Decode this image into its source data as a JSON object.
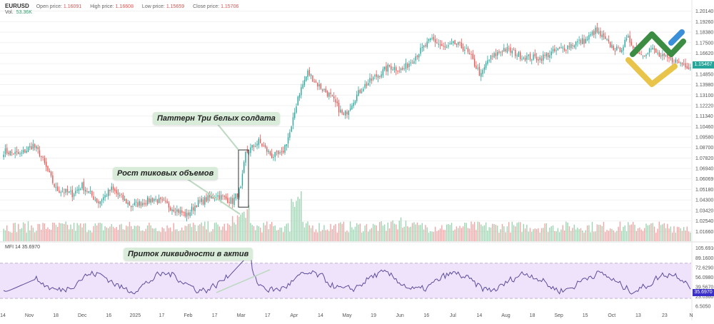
{
  "header": {
    "symbol": "EURUSD",
    "open_label": "Open price:",
    "open_value": "1.16091",
    "high_label": "High price:",
    "high_value": "1.16608",
    "low_label": "Low price:",
    "low_value": "1.15659",
    "close_label": "Close price:",
    "close_value": "1.15706",
    "vol_label": "Vol.",
    "vol_value": "53.36K"
  },
  "mfi": {
    "label": "MFI 14",
    "value": "35.6970"
  },
  "callouts": {
    "three_soldiers": "Паттерн Три белых солдата",
    "tick_volume": "Рост тиковых объемов",
    "liquidity": "Приток ликвидности в актив"
  },
  "price_tags": {
    "current": "1.15467",
    "mfi_current": "35.6970"
  },
  "colors": {
    "up": "#26a69a",
    "down": "#ef5350",
    "up_volume": "#9bd4b0",
    "down_volume": "#f5a3a3",
    "mfi_line": "#5c4b9b",
    "mfi_band": "#efe3fb",
    "price_tag": "#26a69a",
    "mfi_tag": "#3b2fc9"
  },
  "chart_data": {
    "type": "candlestick",
    "symbol": "EURUSD",
    "price_axis_ticks": [
      "1.20140",
      "1.19260",
      "1.18380",
      "1.17500",
      "1.16620",
      "1.15740",
      "1.14850",
      "1.13980",
      "1.13100",
      "1.12220",
      "1.11340",
      "1.10460",
      "1.09580",
      "1.08700",
      "1.07820",
      "1.06940",
      "1.06069",
      "1.05180",
      "1.04300",
      "1.03420",
      "1.02540",
      "1.01660"
    ],
    "price_range": [
      1.012,
      1.206
    ],
    "mfi_axis_ticks": [
      "105.6910",
      "89.1600",
      "72.6290",
      "56.0980",
      "39.5670",
      "23.0360",
      "6.5050"
    ],
    "mfi_range": [
      3.0,
      109.0
    ],
    "mfi_band": [
      20,
      80
    ],
    "time_axis_ticks": [
      "14",
      "Nov",
      "18",
      "Dec",
      "16",
      "2025",
      "17",
      "Feb",
      "17",
      "Mar",
      "17",
      "Apr",
      "14",
      "May",
      "19",
      "Jun",
      "16",
      "Jul",
      "14",
      "Aug",
      "18",
      "Sep",
      "15",
      "Oct",
      "13",
      "23",
      "N"
    ],
    "price_waypoints": [
      [
        0,
        1.084
      ],
      [
        10,
        1.081
      ],
      [
        18,
        1.089
      ],
      [
        22,
        1.082
      ],
      [
        32,
        1.052
      ],
      [
        42,
        1.048
      ],
      [
        48,
        1.055
      ],
      [
        58,
        1.041
      ],
      [
        66,
        1.052
      ],
      [
        78,
        1.038
      ],
      [
        92,
        1.044
      ],
      [
        104,
        1.036
      ],
      [
        112,
        1.03
      ],
      [
        118,
        1.04
      ],
      [
        130,
        1.047
      ],
      [
        140,
        1.042
      ],
      [
        145,
        1.052
      ],
      [
        148,
        1.082
      ],
      [
        156,
        1.092
      ],
      [
        164,
        1.08
      ],
      [
        170,
        1.081
      ],
      [
        176,
        1.103
      ],
      [
        180,
        1.13
      ],
      [
        186,
        1.15
      ],
      [
        192,
        1.14
      ],
      [
        200,
        1.13
      ],
      [
        208,
        1.113
      ],
      [
        214,
        1.127
      ],
      [
        220,
        1.138
      ],
      [
        228,
        1.147
      ],
      [
        236,
        1.155
      ],
      [
        244,
        1.152
      ],
      [
        252,
        1.164
      ],
      [
        262,
        1.178
      ],
      [
        270,
        1.17
      ],
      [
        276,
        1.174
      ],
      [
        282,
        1.17
      ],
      [
        286,
        1.162
      ],
      [
        292,
        1.147
      ],
      [
        296,
        1.16
      ],
      [
        306,
        1.17
      ],
      [
        318,
        1.163
      ],
      [
        328,
        1.162
      ],
      [
        338,
        1.168
      ],
      [
        350,
        1.175
      ],
      [
        356,
        1.177
      ],
      [
        362,
        1.185
      ],
      [
        370,
        1.174
      ],
      [
        376,
        1.168
      ],
      [
        382,
        1.178
      ],
      [
        390,
        1.165
      ],
      [
        396,
        1.17
      ],
      [
        402,
        1.163
      ],
      [
        410,
        1.16
      ],
      [
        420,
        1.155
      ]
    ],
    "last_price": 1.15467,
    "mfi_last": 35.697,
    "mfi_peak": 99.5,
    "three_white_soldiers_box": {
      "from_date": "Feb 25",
      "to_date": "Mar 5",
      "low": 1.037,
      "high": 1.085
    }
  }
}
